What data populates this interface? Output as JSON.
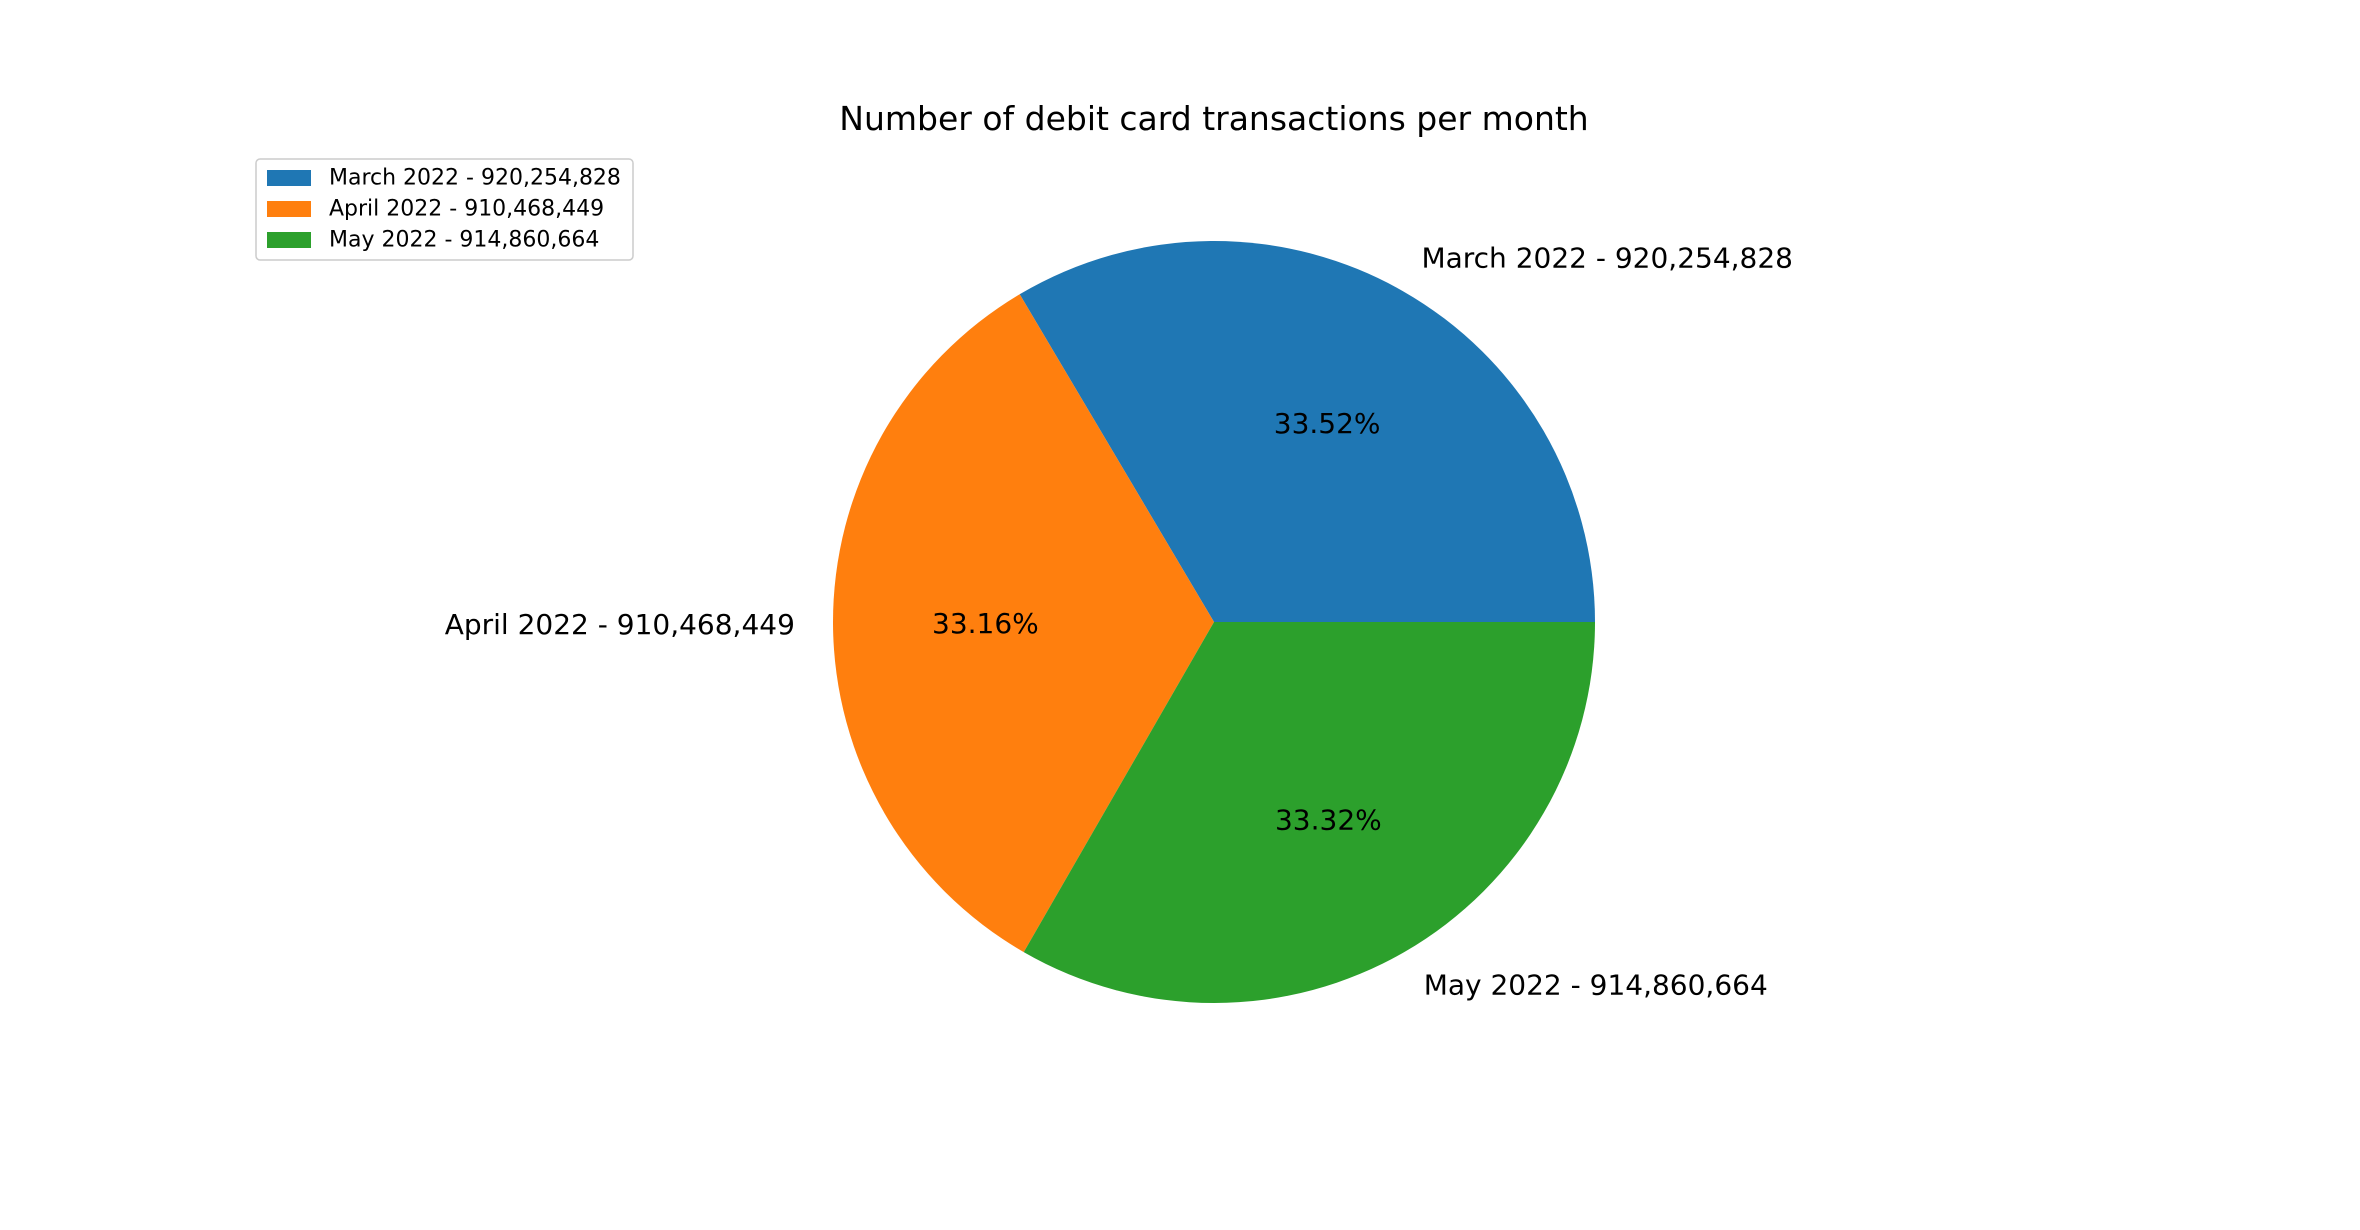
{
  "chart_data": {
    "type": "pie",
    "title": "Number of debit card transactions per month",
    "start_angle_deg": 0,
    "direction": "counterclockwise",
    "legend": "upper-left",
    "slices": [
      {
        "label": "March 2022 - 920,254,828",
        "value": 920254828,
        "percent_label": "33.52%",
        "color": "#1f77b4"
      },
      {
        "label": "April 2022 - 910,468,449",
        "value": 910468449,
        "percent_label": "33.16%",
        "color": "#ff7f0e"
      },
      {
        "label": "May 2022 - 914,860,664",
        "value": 914860664,
        "percent_label": "33.32%",
        "color": "#2ca02c"
      }
    ]
  }
}
